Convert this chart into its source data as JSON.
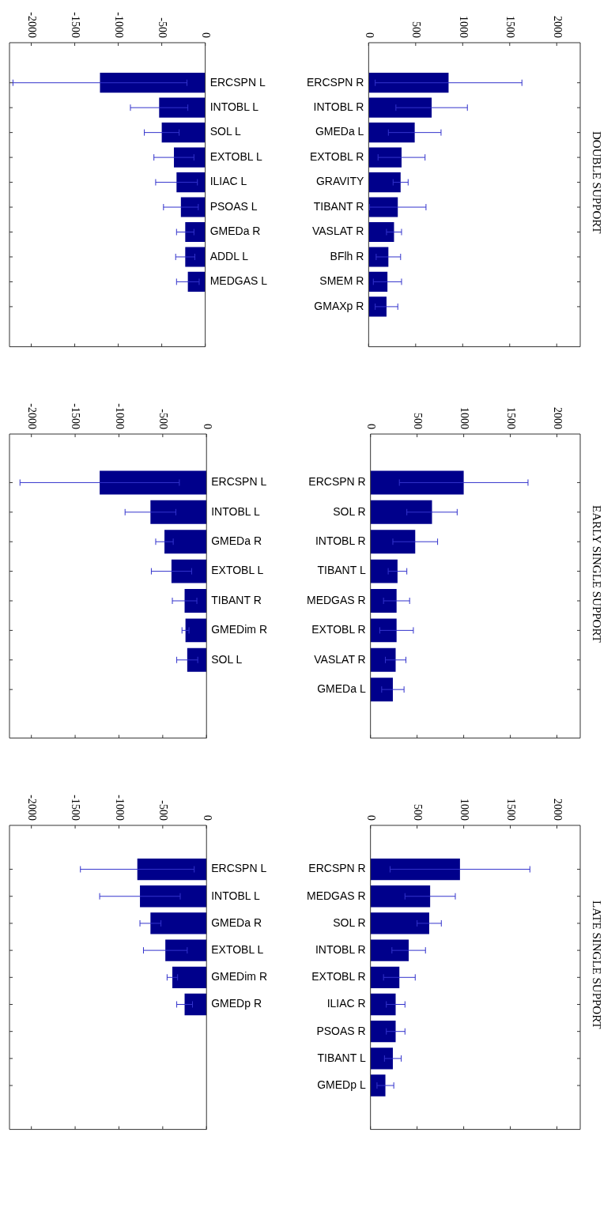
{
  "chart_data": [
    {
      "type": "bar",
      "orientation": "horizontal",
      "categories": [
        "ERCSPN L",
        "INTOBL L",
        "SOL L",
        "EXTOBL L",
        "ILIAC L",
        "PSOAS L",
        "GMEDa R",
        "ADDL L",
        "MEDGAS L",
        null
      ],
      "values": [
        -1210,
        -530,
        -500,
        -360,
        -330,
        -280,
        -230,
        -230,
        -200,
        null
      ],
      "errors": [
        1000,
        330,
        200,
        230,
        240,
        200,
        100,
        110,
        130,
        null
      ],
      "color": "#00008b",
      "xlim": [
        -2250,
        0
      ],
      "xticks": [
        -2000,
        -1500,
        -1000,
        -500,
        0
      ]
    },
    {
      "type": "bar",
      "orientation": "horizontal",
      "categories": [
        "ERCSPN R",
        "INTOBL R",
        "GMEDa L",
        "EXTOBL R",
        "GRAVITY",
        "TIBANT R",
        "VASLAT R",
        "BFlh R",
        "SMEM R",
        "GMAXp R"
      ],
      "values": [
        850,
        670,
        490,
        350,
        340,
        310,
        270,
        210,
        200,
        190
      ],
      "errors": [
        780,
        380,
        280,
        250,
        80,
        300,
        80,
        130,
        150,
        120
      ],
      "color": "#00008b",
      "xlim": [
        0,
        2250
      ],
      "xticks": [
        0,
        500,
        1000,
        1500,
        2000
      ]
    },
    {
      "type": "other",
      "title": "DOUBLE SUPPORT"
    },
    {
      "type": "bar",
      "orientation": "horizontal",
      "categories": [
        "ERCSPN L",
        "INTOBL L",
        "GMEDa R",
        "EXTOBL L",
        "TIBANT R",
        "GMEDim R",
        "SOL L",
        null
      ],
      "values": [
        -1220,
        -640,
        -480,
        -400,
        -250,
        -240,
        -220,
        null
      ],
      "errors": [
        910,
        290,
        100,
        230,
        140,
        40,
        120,
        null
      ],
      "color": "#00008b",
      "xlim": [
        -2250,
        0
      ],
      "xticks": [
        -2000,
        -1500,
        -1000,
        -500,
        0
      ]
    },
    {
      "type": "bar",
      "orientation": "horizontal",
      "categories": [
        "ERCSPN R",
        "SOL R",
        "INTOBL R",
        "TIBANT L",
        "MEDGAS R",
        "EXTOBL R",
        "VASLAT R",
        "GMEDa L"
      ],
      "values": [
        1000,
        660,
        480,
        290,
        280,
        280,
        270,
        240
      ],
      "errors": [
        690,
        270,
        240,
        100,
        140,
        180,
        110,
        120
      ],
      "color": "#00008b",
      "xlim": [
        0,
        2250
      ],
      "xticks": [
        0,
        500,
        1000,
        1500,
        2000
      ]
    },
    {
      "type": "other",
      "title": "EARLY SINGLE SUPPORT"
    },
    {
      "type": "bar",
      "orientation": "horizontal",
      "categories": [
        "ERCSPN L",
        "INTOBL L",
        "GMEDa R",
        "EXTOBL L",
        "GMEDim R",
        "GMEDp R",
        null,
        null,
        null
      ],
      "values": [
        -790,
        -760,
        -640,
        -470,
        -390,
        -250,
        null,
        null,
        null
      ],
      "errors": [
        650,
        460,
        120,
        250,
        60,
        90,
        null,
        null,
        null
      ],
      "color": "#00008b",
      "xlim": [
        -2250,
        0
      ],
      "xticks": [
        -2000,
        -1500,
        -1000,
        -500,
        0
      ]
    },
    {
      "type": "bar",
      "orientation": "horizontal",
      "categories": [
        "ERCSPN R",
        "MEDGAS R",
        "SOL R",
        "INTOBL R",
        "EXTOBL R",
        "ILIAC R",
        "PSOAS R",
        "TIBANT L",
        "GMEDp L"
      ],
      "values": [
        960,
        640,
        630,
        410,
        310,
        270,
        270,
        240,
        160
      ],
      "errors": [
        750,
        270,
        130,
        180,
        170,
        100,
        100,
        90,
        90
      ],
      "color": "#00008b",
      "xlim": [
        0,
        2250
      ],
      "xticks": [
        0,
        500,
        1000,
        1500,
        2000
      ]
    },
    {
      "type": "other",
      "title": "LATE SINGLE SUPPORT"
    }
  ]
}
